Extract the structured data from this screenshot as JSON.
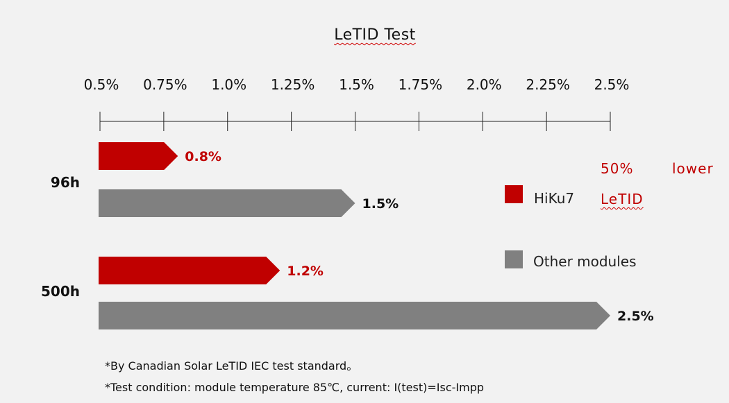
{
  "colors": {
    "hiku7": "#c00000",
    "other": "#808080",
    "axis": "#222222"
  },
  "chart_data": {
    "type": "bar",
    "orientation": "horizontal",
    "title": "LeTID Test",
    "xlim": [
      0.5,
      2.5
    ],
    "x_ticks": [
      {
        "value": 0.5,
        "label": "0.5%"
      },
      {
        "value": 0.75,
        "label": "0.75%"
      },
      {
        "value": 1.0,
        "label": "1.0%"
      },
      {
        "value": 1.25,
        "label": "1.25%"
      },
      {
        "value": 1.5,
        "label": "1.5%"
      },
      {
        "value": 1.75,
        "label": "1.75%"
      },
      {
        "value": 2.0,
        "label": "2.0%"
      },
      {
        "value": 2.25,
        "label": "2.25%"
      },
      {
        "value": 2.5,
        "label": "2.5%"
      }
    ],
    "categories": [
      "96h",
      "500h"
    ],
    "series": [
      {
        "name": "HiKu7",
        "values": [
          0.8,
          1.2
        ],
        "labels": [
          "0.8%",
          "1.2%"
        ]
      },
      {
        "name": "Other modules",
        "values": [
          1.5,
          2.5
        ],
        "labels": [
          "1.5%",
          "2.5%"
        ]
      }
    ],
    "legend_position": "right"
  },
  "annotation": {
    "line1a": "50%",
    "line1b": "lower",
    "line2": "LeTID"
  },
  "footnotes": [
    "*By Canadian Solar LeTID IEC test standard。",
    "*Test condition:  module temperature 85℃,  current:  I(test)=Isc-Impp"
  ]
}
